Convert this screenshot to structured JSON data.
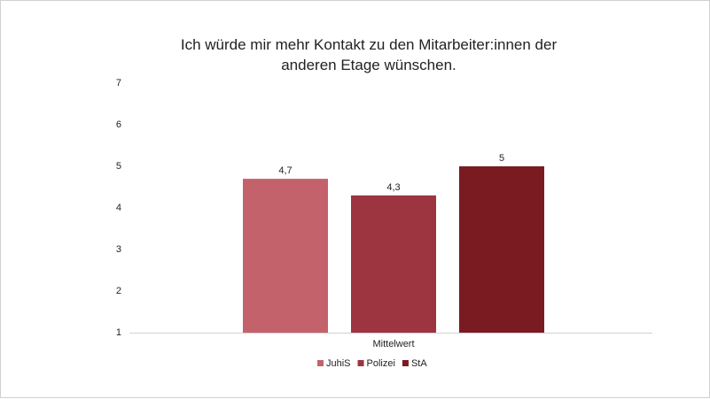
{
  "chart_data": {
    "type": "bar",
    "title": "Ich würde mir mehr Kontakt zu den Mitarbeiter:innen der anderen Etage wünschen.",
    "categories": [
      "Mittelwert"
    ],
    "series": [
      {
        "name": "JuhiS",
        "color": "#c4626b",
        "values": [
          4.7
        ],
        "value_labels": [
          "4,7"
        ]
      },
      {
        "name": "Polizei",
        "color": "#9c353f",
        "values": [
          4.3
        ],
        "value_labels": [
          "4,3"
        ]
      },
      {
        "name": "StA",
        "color": "#7a1b22",
        "values": [
          5
        ],
        "value_labels": [
          "5"
        ]
      }
    ],
    "ylim": [
      1,
      7
    ],
    "yticks": [
      1,
      2,
      3,
      4,
      5,
      6,
      7
    ],
    "grid": false,
    "legend": "bottom"
  }
}
